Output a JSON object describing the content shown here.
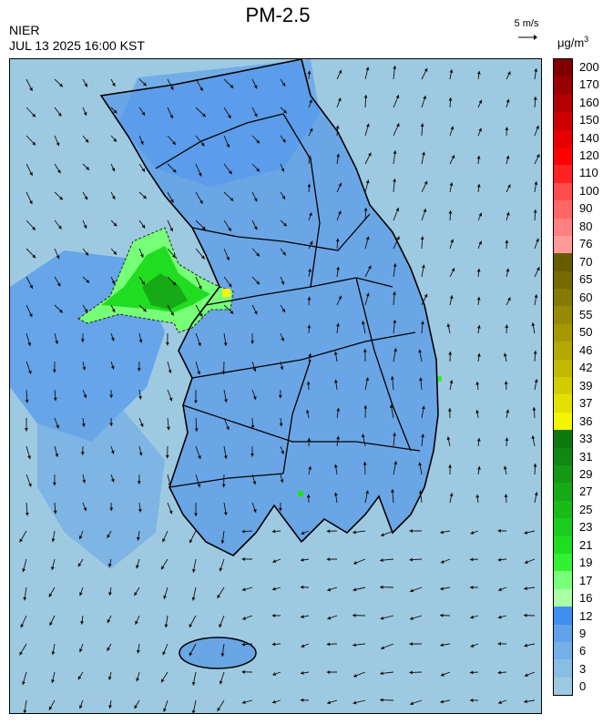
{
  "header": {
    "title": "PM-2.5",
    "agency": "NIER",
    "datetime": "JUL 13 2025 16:00 KST",
    "wind_ref_label": "5 m/s",
    "unit_base": "μg/m",
    "unit_exp": "3"
  },
  "colorbar": {
    "bins": [
      {
        "color": "#9ecae1"
      },
      {
        "color": "#89bde3"
      },
      {
        "color": "#74b0e6"
      },
      {
        "color": "#5ea3ea"
      },
      {
        "color": "#3f8ff0"
      },
      {
        "color": "#a8ffa8"
      },
      {
        "color": "#78ff78"
      },
      {
        "color": "#34f034"
      },
      {
        "color": "#21dd21"
      },
      {
        "color": "#1ccc1c"
      },
      {
        "color": "#19bb19"
      },
      {
        "color": "#17aa17"
      },
      {
        "color": "#149914"
      },
      {
        "color": "#118811"
      },
      {
        "color": "#0e770e"
      },
      {
        "color": "#f5f500"
      },
      {
        "color": "#e5e000"
      },
      {
        "color": "#d4cc00"
      },
      {
        "color": "#c4b800"
      },
      {
        "color": "#b5a800"
      },
      {
        "color": "#a69900"
      },
      {
        "color": "#968a00"
      },
      {
        "color": "#867a00"
      },
      {
        "color": "#766b00"
      },
      {
        "color": "#665c00"
      },
      {
        "color": "#ff9a9a"
      },
      {
        "color": "#ff8080"
      },
      {
        "color": "#ff6666"
      },
      {
        "color": "#ff4d4d"
      },
      {
        "color": "#ff2222"
      },
      {
        "color": "#ff0000"
      },
      {
        "color": "#e60000"
      },
      {
        "color": "#cc0000"
      },
      {
        "color": "#b30000"
      },
      {
        "color": "#990000"
      },
      {
        "color": "#800000"
      }
    ],
    "ticks": [
      "0",
      "3",
      "6",
      "9",
      "12",
      "16",
      "17",
      "19",
      "21",
      "23",
      "25",
      "27",
      "29",
      "31",
      "33",
      "36",
      "37",
      "39",
      "42",
      "46",
      "50",
      "55",
      "60",
      "65",
      "70",
      "76",
      "80",
      "90",
      "100",
      "110",
      "120",
      "140",
      "150",
      "160",
      "170",
      "200"
    ]
  },
  "map": {
    "ocean_color": "#9ecae1",
    "land_color": "#6aa6e6",
    "land_high_color": "#4f96ec",
    "hotspot": {
      "label_range": "16-27"
    }
  }
}
